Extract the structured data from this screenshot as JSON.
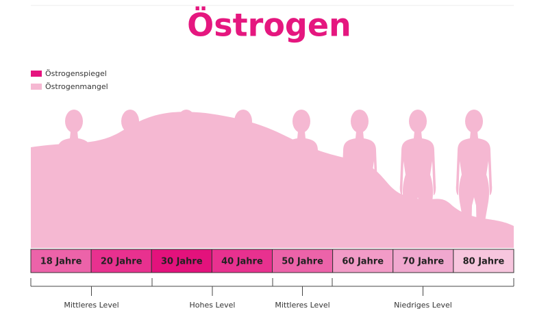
{
  "title": "Östrogen",
  "legend": [
    "Östrogenspiegel",
    "Östrogenmangel"
  ],
  "ages": [
    "18 Jahre",
    "20 Jahre",
    "30 Jahre",
    "40 Jahre",
    "50 Jahre",
    "60 Jahre",
    "70 Jahre",
    "80 Jahre"
  ],
  "levels": [
    "Mittleres Level",
    "Hohes Level",
    "Mittleres Level",
    "Niedriges Level"
  ]
}
